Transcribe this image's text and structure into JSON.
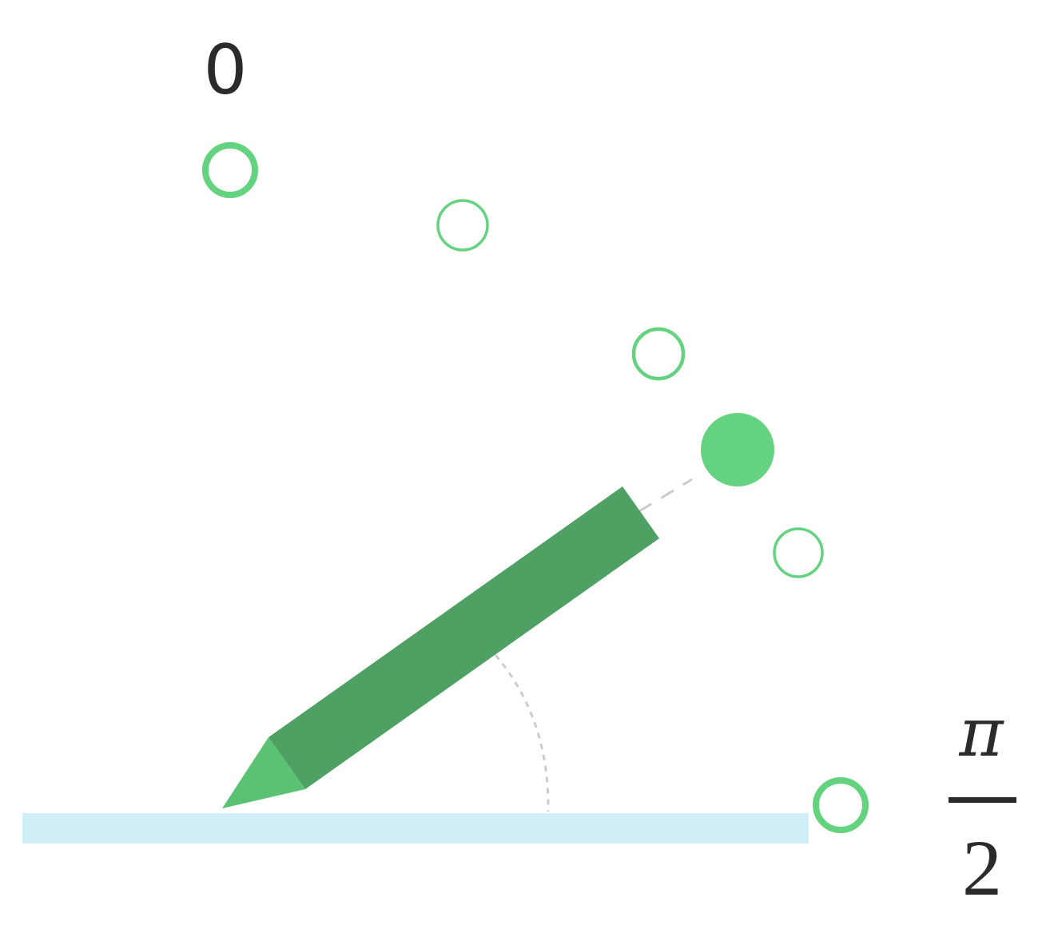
{
  "labels": {
    "start": "0",
    "end_numerator": "π",
    "end_denominator": "2"
  },
  "colors": {
    "surface": "#d1eff9",
    "pencil_body": "#4ea063",
    "pencil_tip": "#5bc273",
    "option": "#64d37f",
    "guide": "#cccccc",
    "text": "#2b2b2b"
  },
  "angle_options": [
    {
      "label": "0",
      "selected": false
    },
    {
      "selected": false
    },
    {
      "selected": false
    },
    {
      "selected": true
    },
    {
      "selected": false
    },
    {
      "label": "π/2",
      "selected": false
    }
  ]
}
